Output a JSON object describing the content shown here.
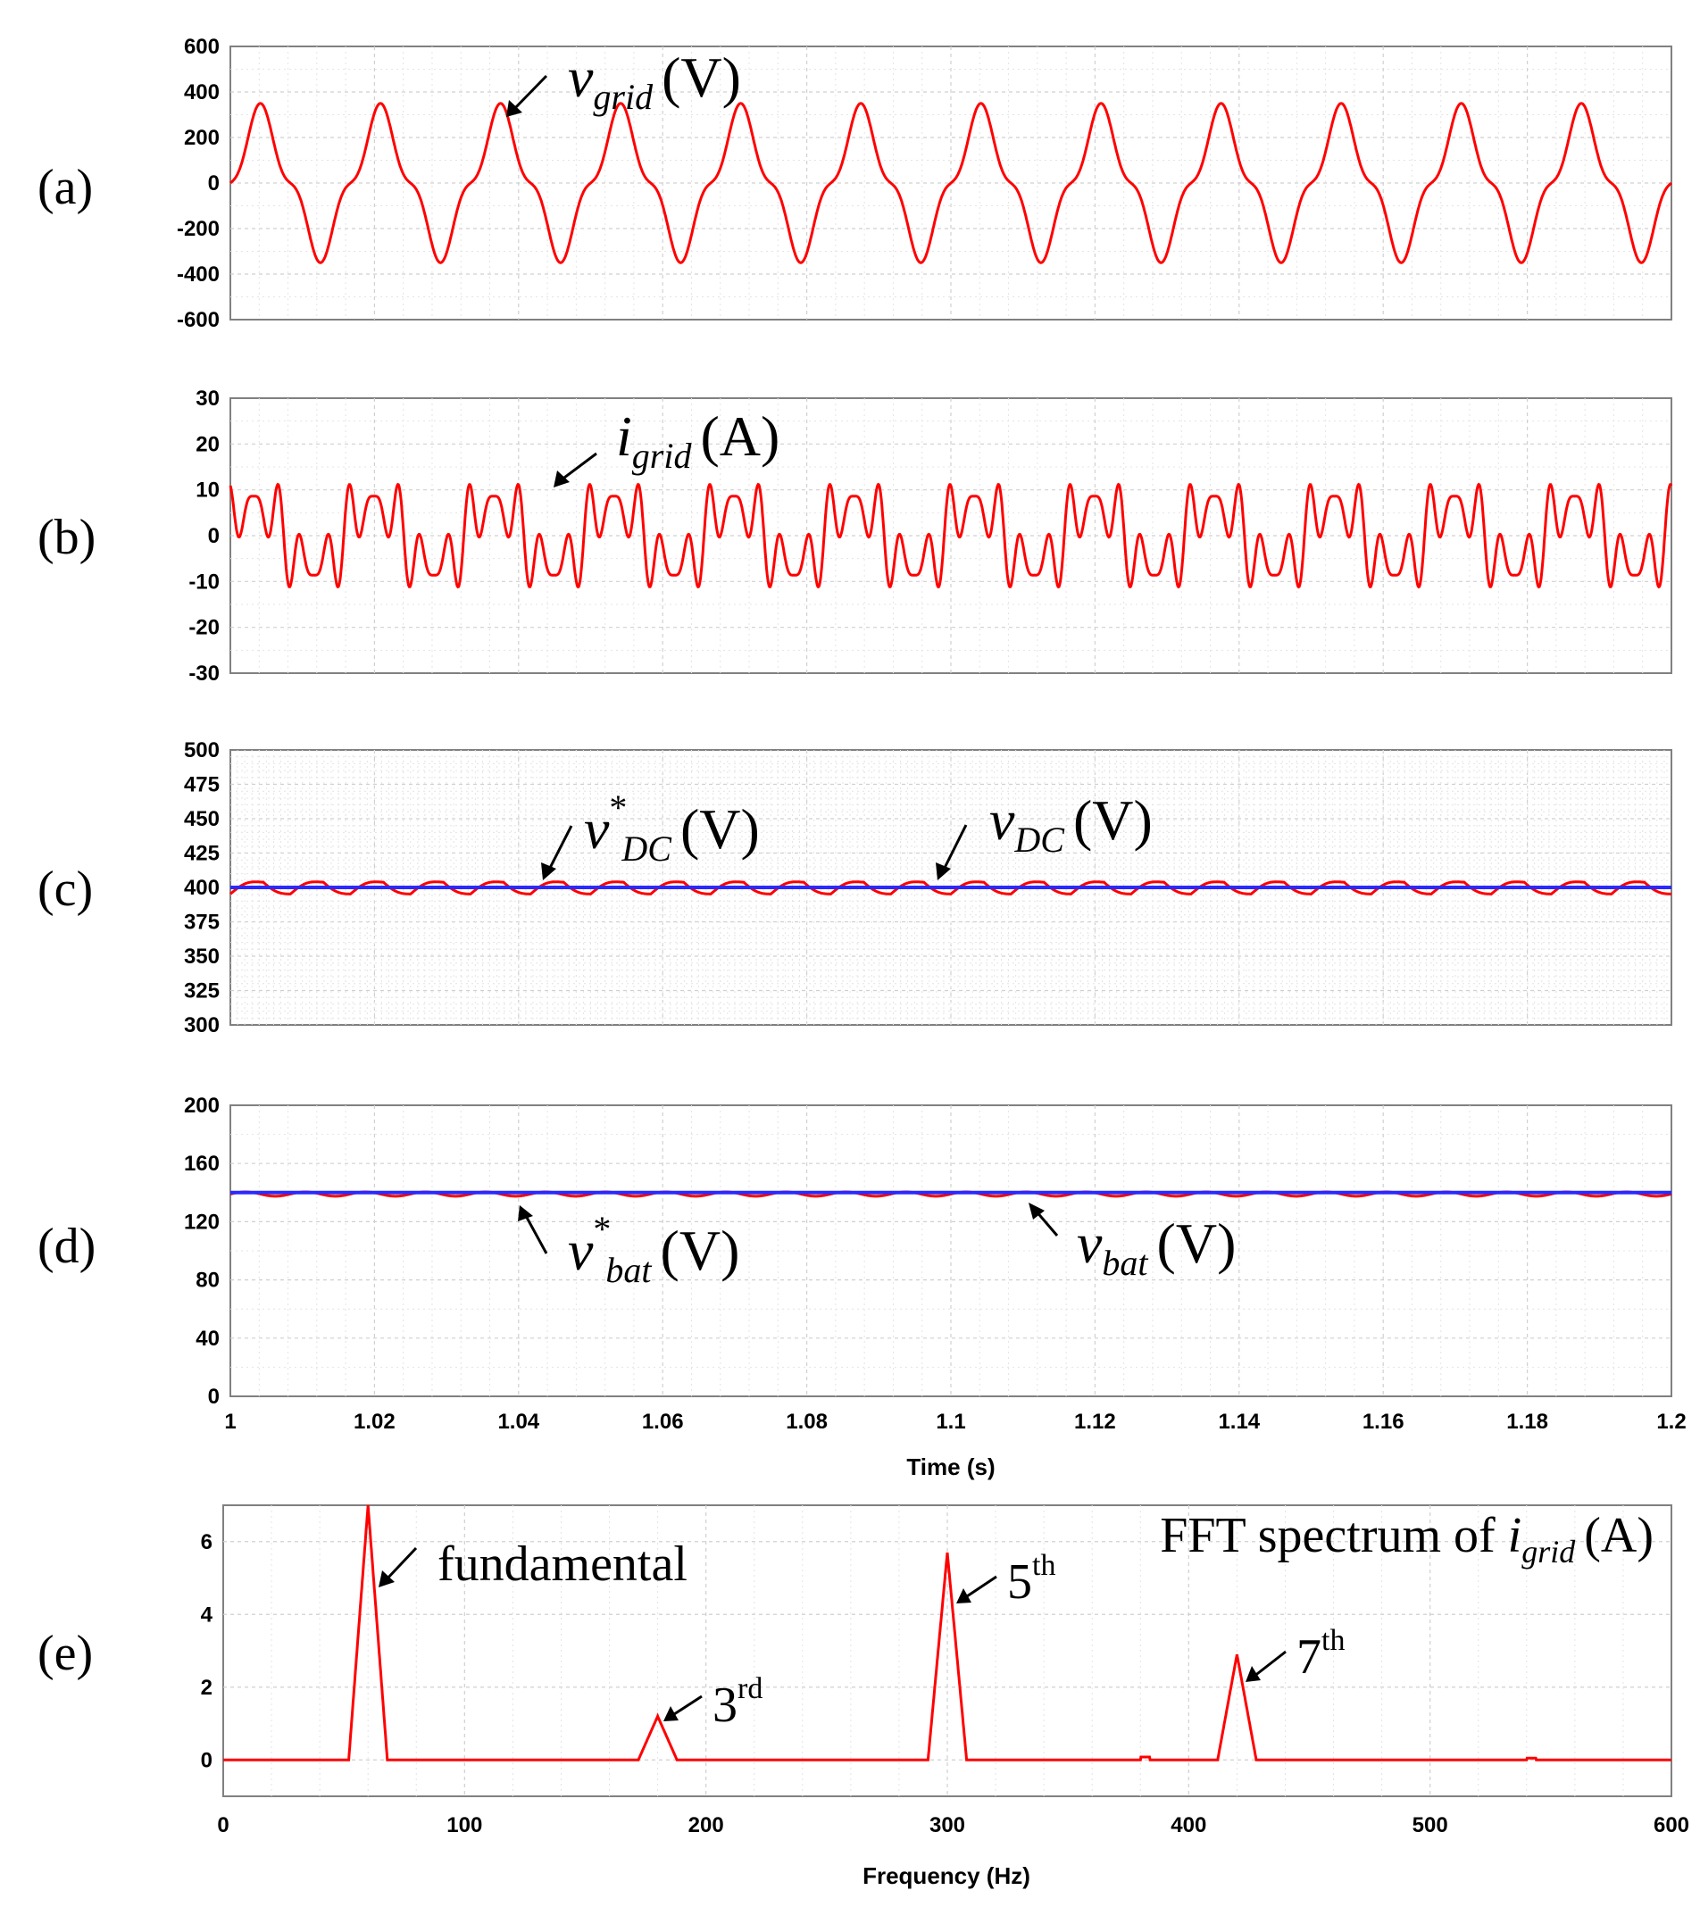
{
  "chart_data": [
    {
      "type": "line",
      "panel": "(a)",
      "signal": "v_grid (V)",
      "annotation": {
        "base": "v",
        "sub": "grid",
        "unit": "(V)"
      },
      "x": [
        1.0,
        1.2
      ],
      "xlim": [
        1.0,
        1.2
      ],
      "ylim": [
        -600,
        600
      ],
      "yticks": [
        600,
        400,
        200,
        0,
        -200,
        -400,
        -600
      ],
      "series": [
        {
          "name": "v_grid",
          "color": "#ff0000",
          "waveform": "sum of harmonics",
          "fundamental_hz": 60,
          "harmonics": [
            {
              "order": 1,
              "amplitude": 280
            },
            {
              "order": 3,
              "amplitude": -70
            }
          ]
        }
      ]
    },
    {
      "type": "line",
      "panel": "(b)",
      "signal": "i_grid (A)",
      "annotation": {
        "base": "i",
        "sub": "grid",
        "unit": "(A)"
      },
      "xlim": [
        1.0,
        1.2
      ],
      "ylim": [
        -30,
        30
      ],
      "yticks": [
        30,
        20,
        10,
        0,
        -10,
        -20,
        -30
      ],
      "series": [
        {
          "name": "i_grid",
          "color": "#ff0000",
          "fundamental_hz": 60,
          "harmonics": [
            {
              "order": 1,
              "amplitude": 7
            },
            {
              "order": 3,
              "amplitude": 1.2
            },
            {
              "order": 5,
              "amplitude": 5.7
            },
            {
              "order": 7,
              "amplitude": 2.9
            }
          ]
        }
      ]
    },
    {
      "type": "line",
      "panel": "(c)",
      "annotations": [
        {
          "base": "v",
          "sup": "*",
          "sub": "DC",
          "unit": "(V)"
        },
        {
          "base": "v",
          "sub": "DC",
          "unit": "(V)"
        }
      ],
      "xlim": [
        1.0,
        1.2
      ],
      "ylim": [
        300,
        500
      ],
      "yticks": [
        500,
        475,
        450,
        425,
        400,
        375,
        350,
        325,
        300
      ],
      "series": [
        {
          "name": "v*_DC",
          "color": "#2a2aff",
          "constant": 400
        },
        {
          "name": "v_DC",
          "color": "#ff0000",
          "mean": 400,
          "ripple_hz": 120,
          "ripple_amplitude": 8
        }
      ]
    },
    {
      "type": "line",
      "panel": "(d)",
      "annotations": [
        {
          "base": "v",
          "sup": "*",
          "sub": "bat",
          "unit": "(V)"
        },
        {
          "base": "v",
          "sub": "bat",
          "unit": "(V)"
        }
      ],
      "xlim": [
        1.0,
        1.2
      ],
      "ylim": [
        0,
        200
      ],
      "yticks": [
        200,
        160,
        120,
        80,
        40,
        0
      ],
      "xticks": [
        "1",
        "1.02",
        "1.04",
        "1.06",
        "1.08",
        "1.1",
        "1.12",
        "1.14",
        "1.16",
        "1.18",
        "1.2"
      ],
      "xlabel": "Time (s)",
      "series": [
        {
          "name": "v*_bat",
          "color": "#2a2aff",
          "constant": 140
        },
        {
          "name": "v_bat",
          "color": "#ff0000",
          "mean": 139,
          "ripple_hz": 120,
          "ripple_amplitude": 1.5
        }
      ]
    },
    {
      "type": "line",
      "panel": "(e)",
      "title": {
        "text": "FFT spectrum of",
        "base": "i",
        "sub": "grid",
        "unit": "(A)"
      },
      "xlim": [
        0,
        600
      ],
      "ylim": [
        -1,
        7
      ],
      "yticks": [
        6,
        4,
        2,
        0
      ],
      "xticks": [
        0,
        100,
        200,
        300,
        400,
        500,
        600
      ],
      "xlabel": "Frequency (Hz)",
      "series": [
        {
          "name": "FFT i_grid",
          "color": "#ff0000",
          "peaks": [
            {
              "freq": 60,
              "magnitude": 7.0,
              "label": "fundamental"
            },
            {
              "freq": 180,
              "magnitude": 1.2,
              "label": "3",
              "sup": "rd"
            },
            {
              "freq": 300,
              "magnitude": 5.7,
              "label": "5",
              "sup": "th"
            },
            {
              "freq": 420,
              "magnitude": 2.9,
              "label": "7",
              "sup": "th"
            }
          ]
        }
      ]
    }
  ]
}
